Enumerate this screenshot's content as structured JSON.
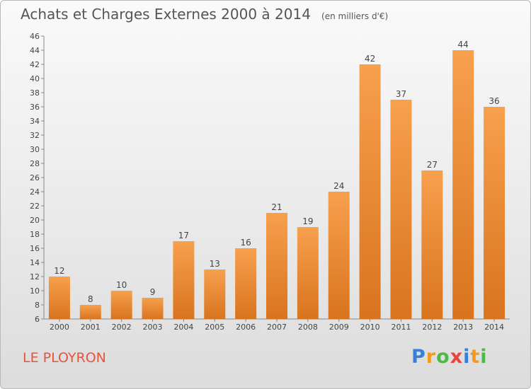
{
  "title": "Achats et Charges Externes 2000 à 2014",
  "unit_note": "(en milliers d'€)",
  "place_name": "LE PLOYRON",
  "logo": {
    "letters": [
      "P",
      "r",
      "o",
      "x",
      "i",
      "t",
      "i"
    ],
    "colors": [
      "#3a7fd6",
      "#f39a1e",
      "#4fb947",
      "#e8443a",
      "#3a7fd6",
      "#f39a1e",
      "#4fb947"
    ]
  },
  "colors": {
    "bar_light": "#f7a04e",
    "bar_dark": "#d9741e",
    "title": "#555555",
    "place_name": "#e8543a"
  },
  "chart_data": {
    "type": "bar",
    "title": "Achats et Charges Externes 2000 à 2014",
    "categories": [
      "2000",
      "2001",
      "2002",
      "2003",
      "2004",
      "2005",
      "2006",
      "2007",
      "2008",
      "2009",
      "2010",
      "2011",
      "2012",
      "2013",
      "2014"
    ],
    "values": [
      12,
      8,
      10,
      9,
      17,
      13,
      16,
      21,
      19,
      24,
      42,
      37,
      27,
      44,
      36
    ],
    "ylim": [
      6,
      46
    ],
    "yticks": [
      6,
      8,
      10,
      12,
      14,
      16,
      18,
      20,
      22,
      24,
      26,
      28,
      30,
      32,
      34,
      36,
      38,
      40,
      42,
      44,
      46
    ],
    "grid": false,
    "legend": "none"
  }
}
